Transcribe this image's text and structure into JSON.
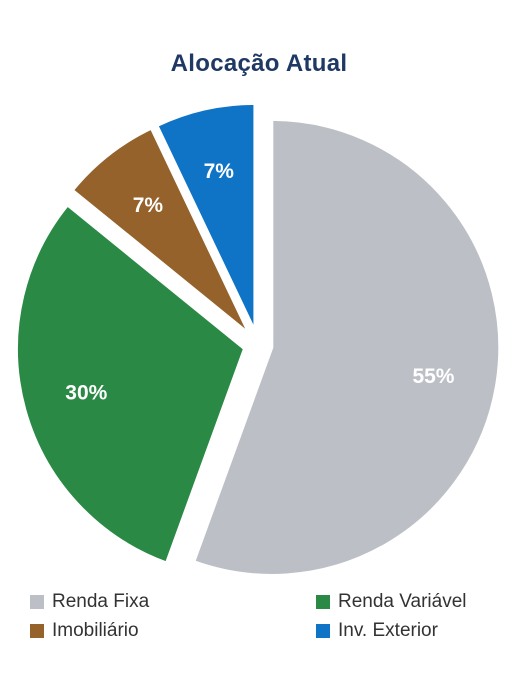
{
  "chart_data": {
    "type": "pie",
    "title": "Alocação Atual",
    "slices": [
      {
        "label": "Renda Fixa",
        "value": 55,
        "display": "55%",
        "color": "#bcc0c6"
      },
      {
        "label": "Renda Variável",
        "value": 30,
        "display": "30%",
        "color": "#2a8a45"
      },
      {
        "label": "Imobiliário",
        "value": 7,
        "display": "7%",
        "color": "#94622a"
      },
      {
        "label": "Inv. Exterior",
        "value": 7,
        "display": "7%",
        "color": "#1074c6"
      }
    ],
    "legend_position": "bottom",
    "exploded": true
  }
}
